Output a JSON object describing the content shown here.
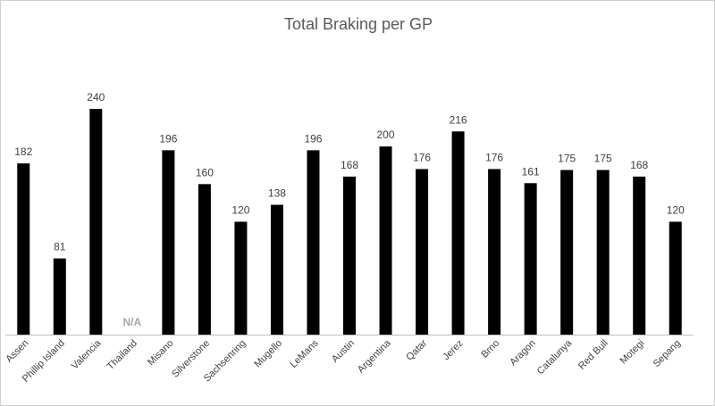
{
  "chart_data": {
    "type": "bar",
    "title": "Total Braking per GP",
    "xlabel": "",
    "ylabel": "",
    "ylim": [
      0,
      240
    ],
    "grid": false,
    "legend": "none",
    "categories": [
      "Assen",
      "Phillip Island",
      "Valencia",
      "Thailand",
      "Misano",
      "Silverstone",
      "Sachsenring",
      "Mugello",
      "LeMans",
      "Austin",
      "Argentina",
      "Qatar",
      "Jerez",
      "Brno",
      "Aragon",
      "Catalunya",
      "Red Bull",
      "Motegi",
      "Sepang"
    ],
    "values": [
      182,
      81,
      240,
      null,
      196,
      160,
      120,
      138,
      196,
      168,
      200,
      176,
      216,
      176,
      161,
      175,
      175,
      168,
      120
    ],
    "data_labels": [
      "182",
      "81",
      "240",
      "N/A",
      "196",
      "160",
      "120",
      "138",
      "196",
      "168",
      "200",
      "176",
      "216",
      "176",
      "161",
      "175",
      "175",
      "168",
      "120"
    ],
    "colors": {
      "bar": "#000000",
      "label": "#404040",
      "missing_label": "#a6a6a6",
      "axis": "#bfbfbf",
      "title": "#595959"
    }
  }
}
